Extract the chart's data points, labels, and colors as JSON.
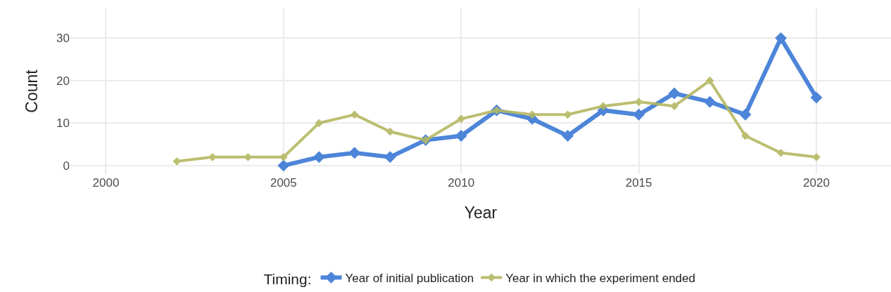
{
  "chart_data": {
    "type": "line",
    "xlabel": "Year",
    "ylabel": "Count",
    "legend_title": "Timing:",
    "xlim": [
      1999,
      2022.1
    ],
    "xticks": [
      2000,
      2005,
      2010,
      2015,
      2020
    ],
    "ylim": [
      -2,
      37
    ],
    "yticks": [
      0,
      10,
      20,
      30
    ],
    "grid": true,
    "legend": "bottom",
    "marker": "diamond",
    "line_style": "solid",
    "series": [
      {
        "name": "Year of initial publication",
        "color": "#3a78d4",
        "x": [
          2005,
          2006,
          2007,
          2008,
          2009,
          2010,
          2011,
          2012,
          2013,
          2014,
          2015,
          2016,
          2017,
          2018,
          2019,
          2020
        ],
        "values": [
          0,
          2,
          3,
          2,
          6,
          7,
          13,
          11,
          7,
          13,
          12,
          17,
          15,
          12,
          30,
          16
        ]
      },
      {
        "name": "Year in which the experiment ended",
        "color": "#b5b862",
        "x": [
          2002,
          2003,
          2004,
          2005,
          2006,
          2007,
          2008,
          2009,
          2010,
          2011,
          2012,
          2013,
          2014,
          2015,
          2016,
          2017,
          2018,
          2019,
          2020
        ],
        "values": [
          1,
          2,
          2,
          2,
          10,
          12,
          8,
          6,
          11,
          13,
          12,
          12,
          14,
          15,
          14,
          20,
          7,
          3,
          2
        ]
      }
    ]
  }
}
